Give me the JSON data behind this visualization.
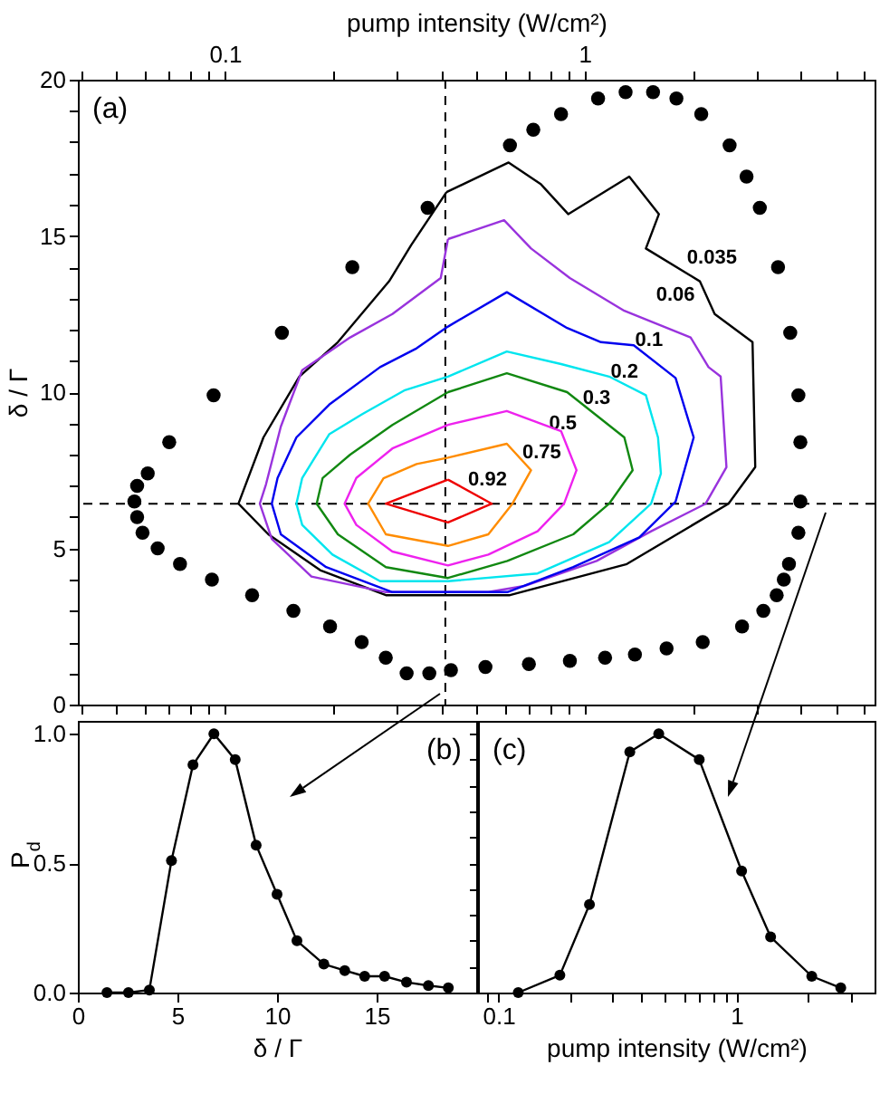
{
  "chart_data": [
    {
      "type": "scatter",
      "log": "x",
      "xlim": [
        0.039,
        6.4
      ],
      "xticks": [
        {
          "value": 0.04,
          "label": null
        },
        {
          "value": 0.05,
          "label": null
        },
        {
          "value": 0.06,
          "label": null
        },
        {
          "value": 0.07,
          "label": null
        },
        {
          "value": 0.08,
          "label": null
        },
        {
          "value": 0.09,
          "label": null
        },
        0.1,
        {
          "value": 0.2,
          "label": null
        },
        {
          "value": 0.3,
          "label": null
        },
        {
          "value": 0.4,
          "label": null
        },
        {
          "value": 0.5,
          "label": null
        },
        {
          "value": 0.6,
          "label": null
        },
        {
          "value": 0.7,
          "label": null
        },
        {
          "value": 0.8,
          "label": null
        },
        {
          "value": 0.9,
          "label": null
        },
        1,
        {
          "value": 2,
          "label": null
        },
        {
          "value": 3,
          "label": null
        },
        {
          "value": 4,
          "label": null
        },
        {
          "value": 5,
          "label": null
        },
        {
          "value": 6,
          "label": null
        }
      ],
      "xlabel": "pump intensity (W/cm²)",
      "ylabel": "δ / Γ",
      "ylim": [
        0,
        20
      ],
      "yticks": [
        0,
        {
          "value": 1,
          "label": null
        },
        {
          "value": 2,
          "label": null
        },
        {
          "value": 3,
          "label": null
        },
        {
          "value": 4,
          "label": null
        },
        5,
        {
          "value": 6,
          "label": null
        },
        {
          "value": 7,
          "label": null
        },
        {
          "value": 8,
          "label": null
        },
        {
          "value": 9,
          "label": null
        },
        10,
        {
          "value": 11,
          "label": null
        },
        {
          "value": 12,
          "label": null
        },
        {
          "value": 13,
          "label": null
        },
        {
          "value": 14,
          "label": null
        },
        15,
        {
          "value": 16,
          "label": null
        },
        {
          "value": 17,
          "label": null
        },
        {
          "value": 18,
          "label": null
        },
        {
          "value": 19,
          "label": null
        },
        20
      ],
      "series": [
        {
          "color": "#000000",
          "x": [
            0.366,
            0.226,
            0.144,
            0.093,
            0.07,
            0.061,
            0.057,
            0.056,
            0.057,
            0.059,
            0.065,
            0.075,
            0.092,
            0.119,
            0.155,
            0.196,
            0.24,
            0.28,
            0.32,
            0.37,
            0.425,
            0.53,
            0.7,
            0.91,
            1.14,
            1.38,
            1.69,
            2.13,
            2.74,
            3.14,
            3.42,
            3.58,
            3.7,
            3.93,
            3.98,
            3.98,
            3.93,
            3.73,
            3.45,
            3.07,
            2.82,
            2.53,
            2.11,
            1.8,
            1.55,
            1.3,
            1.09,
            0.86,
            0.72,
            0.62
          ],
          "values": [
            15.9,
            14.0,
            11.9,
            9.9,
            8.4,
            7.4,
            7.0,
            6.5,
            6.0,
            5.5,
            5.0,
            4.5,
            4.0,
            3.5,
            3.0,
            2.5,
            2.0,
            1.5,
            1.0,
            1.0,
            1.1,
            1.2,
            1.3,
            1.4,
            1.5,
            1.6,
            1.8,
            2.0,
            2.5,
            3.0,
            3.5,
            4.0,
            4.5,
            5.5,
            6.5,
            8.4,
            9.9,
            11.9,
            14.0,
            15.9,
            16.9,
            17.9,
            18.9,
            19.4,
            19.6,
            19.6,
            19.4,
            18.9,
            18.4,
            17.9
          ]
        }
      ],
      "ref_lines": [
        {
          "axis": "x",
          "value": 0.41,
          "color": "#000000",
          "line_style": "dashed"
        },
        {
          "axis": "y",
          "value": 6.43,
          "color": "#000000",
          "line_style": "dashed"
        }
      ],
      "annotations": [
        "(a)",
        "0.035",
        "0.06",
        "0.1",
        "0.2",
        "0.3",
        "0.5",
        "0.75",
        "0.92"
      ]
    },
    {
      "type": "line",
      "marker": "circle",
      "xlabel": "δ / Γ",
      "ylabel": "P$_{d}$",
      "xlim": [
        0,
        20
      ],
      "xticks": [
        0,
        5,
        10,
        15
      ],
      "ylim": [
        0,
        1.05
      ],
      "yticks": [
        {
          "value": 0,
          "label": "0.0"
        },
        {
          "value": 0.5,
          "label": "0.5"
        },
        {
          "value": 1,
          "label": "1.0"
        }
      ],
      "series": [
        {
          "color": "#000000",
          "x": [
            1.46,
            2.54,
            3.59,
            4.7,
            5.78,
            6.83,
            7.9,
            8.95,
            10.0,
            11.0,
            12.35,
            13.4,
            14.4,
            15.4,
            16.5,
            17.6,
            18.6
          ],
          "values": [
            0.0,
            0.0,
            0.01,
            0.51,
            0.88,
            1.0,
            0.9,
            0.57,
            0.38,
            0.2,
            0.11,
            0.085,
            0.063,
            0.063,
            0.04,
            0.027,
            0.018
          ]
        }
      ],
      "annotations": [
        "(b)"
      ]
    },
    {
      "type": "line",
      "marker": "circle",
      "log": "x",
      "xlabel": "pump intensity (W/cm²)",
      "tick_labels": "x",
      "xlim": [
        0.082,
        3.8
      ],
      "xticks": [
        {
          "value": 0.09,
          "label": null
        },
        0.1,
        {
          "value": 0.2,
          "label": null
        },
        {
          "value": 0.3,
          "label": null
        },
        {
          "value": 0.4,
          "label": null
        },
        {
          "value": 0.5,
          "label": null
        },
        {
          "value": 0.6,
          "label": null
        },
        {
          "value": 0.7,
          "label": null
        },
        {
          "value": 0.8,
          "label": null
        },
        {
          "value": 0.9,
          "label": null
        },
        1,
        {
          "value": 2,
          "label": null
        },
        {
          "value": 3,
          "label": null
        }
      ],
      "ylim": [
        0,
        1.05
      ],
      "yticks": [
        0,
        0.1,
        0.2,
        0.3,
        0.4,
        0.5,
        0.6,
        0.7,
        0.8,
        0.9,
        1
      ],
      "series": [
        {
          "color": "#000000",
          "x": [
            0.121,
            0.181,
            0.241,
            0.356,
            0.471,
            0.697,
            1.05,
            1.39,
            2.07,
            2.74
          ],
          "values": [
            0.0,
            0.067,
            0.34,
            0.93,
            1.0,
            0.9,
            0.47,
            0.215,
            0.063,
            0.018
          ]
        }
      ],
      "annotations": [
        "(c)"
      ]
    }
  ]
}
